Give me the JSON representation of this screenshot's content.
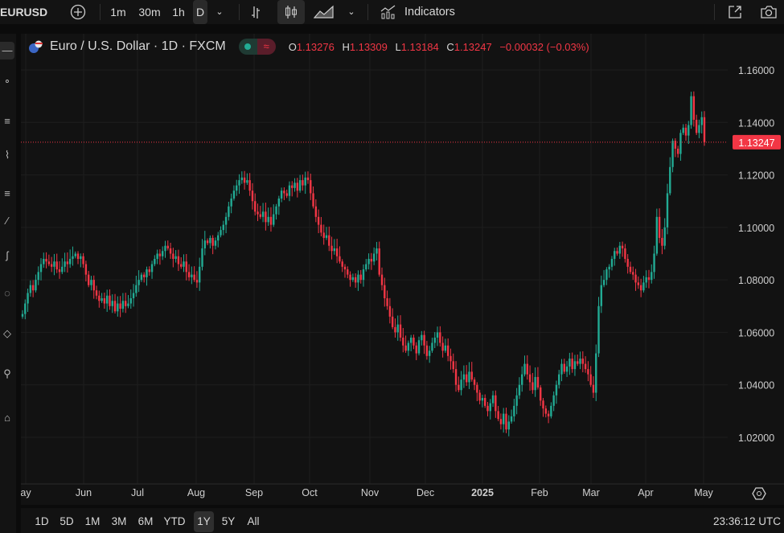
{
  "toolbar": {
    "symbol": "EURUSD",
    "intervals": [
      "1m",
      "30m",
      "1h",
      "D"
    ],
    "selected_interval": "D",
    "indicators_label": "Indicators",
    "icons": [
      "add-symbol-icon",
      "chevron-down-icon",
      "bar-chart-icon",
      "candles-icon",
      "area-chart-icon",
      "chevron-down-icon",
      "indicators-icon",
      "fullscreen-icon",
      "camera-icon"
    ]
  },
  "legend": {
    "title": "Euro / U.S. Dollar · 1D · FXCM",
    "open_label": "O",
    "open": "1.13276",
    "high_label": "H",
    "high": "1.13309",
    "low_label": "L",
    "low": "1.13184",
    "close_label": "C",
    "close": "1.13247",
    "change": "−0.00032 (−0.03%)"
  },
  "time_axis": {
    "labels": [
      "ay",
      "Jun",
      "Jul",
      "Aug",
      "Sep",
      "Oct",
      "Nov",
      "Dec",
      "2025",
      "Feb",
      "Mar",
      "Apr",
      "May"
    ]
  },
  "ranges": {
    "items": [
      "1D",
      "5D",
      "1M",
      "3M",
      "6M",
      "YTD",
      "1Y",
      "5Y",
      "All"
    ],
    "selected": "1Y"
  },
  "clock": "23:36:12 UTC",
  "colors": {
    "up": "#22ab94",
    "down": "#f23645",
    "background": "#121212"
  },
  "chart_data": {
    "type": "candlestick",
    "symbol": "EURUSD",
    "interval": "1D",
    "last_price": "1.13247",
    "ylim": [
      1.01,
      1.17
    ],
    "y_ticks": [
      "1.16000",
      "1.14000",
      "1.12000",
      "1.10000",
      "1.08000",
      "1.06000",
      "1.04000",
      "1.02000"
    ],
    "x_ticks": [
      "May",
      "Jun",
      "Jul",
      "Aug",
      "Sep",
      "Oct",
      "Nov",
      "Dec",
      "2025",
      "Feb",
      "Mar",
      "Apr",
      "May"
    ],
    "first_open": 1.066,
    "closes": [
      1.067,
      1.071,
      1.075,
      1.078,
      1.076,
      1.08,
      1.083,
      1.086,
      1.088,
      1.087,
      1.086,
      1.085,
      1.087,
      1.084,
      1.083,
      1.085,
      1.087,
      1.086,
      1.088,
      1.089,
      1.09,
      1.088,
      1.089,
      1.086,
      1.082,
      1.078,
      1.08,
      1.076,
      1.074,
      1.072,
      1.073,
      1.071,
      1.074,
      1.07,
      1.072,
      1.068,
      1.071,
      1.069,
      1.072,
      1.07,
      1.071,
      1.073,
      1.075,
      1.078,
      1.08,
      1.082,
      1.081,
      1.084,
      1.083,
      1.086,
      1.088,
      1.09,
      1.089,
      1.091,
      1.093,
      1.092,
      1.09,
      1.088,
      1.089,
      1.086,
      1.085,
      1.087,
      1.083,
      1.081,
      1.082,
      1.08,
      1.079,
      1.085,
      1.092,
      1.095,
      1.094,
      1.096,
      1.093,
      1.095,
      1.097,
      1.099,
      1.101,
      1.104,
      1.108,
      1.111,
      1.114,
      1.116,
      1.118,
      1.119,
      1.117,
      1.118,
      1.114,
      1.11,
      1.106,
      1.105,
      1.104,
      1.106,
      1.102,
      1.104,
      1.101,
      1.105,
      1.108,
      1.111,
      1.114,
      1.113,
      1.112,
      1.116,
      1.115,
      1.117,
      1.114,
      1.118,
      1.116,
      1.119,
      1.118,
      1.113,
      1.108,
      1.104,
      1.101,
      1.098,
      1.096,
      1.097,
      1.093,
      1.091,
      1.092,
      1.089,
      1.087,
      1.085,
      1.084,
      1.082,
      1.08,
      1.081,
      1.079,
      1.082,
      1.08,
      1.084,
      1.086,
      1.088,
      1.087,
      1.09,
      1.092,
      1.082,
      1.078,
      1.073,
      1.07,
      1.066,
      1.062,
      1.06,
      1.063,
      1.058,
      1.055,
      1.053,
      1.056,
      1.058,
      1.055,
      1.052,
      1.057,
      1.059,
      1.055,
      1.051,
      1.053,
      1.056,
      1.058,
      1.06,
      1.056,
      1.053,
      1.055,
      1.051,
      1.049,
      1.046,
      1.04,
      1.038,
      1.042,
      1.044,
      1.041,
      1.045,
      1.042,
      1.04,
      1.037,
      1.034,
      1.035,
      1.032,
      1.03,
      1.033,
      1.036,
      1.03,
      1.027,
      1.025,
      1.029,
      1.023,
      1.026,
      1.028,
      1.032,
      1.036,
      1.04,
      1.044,
      1.048,
      1.044,
      1.041,
      1.038,
      1.043,
      1.039,
      1.034,
      1.031,
      1.029,
      1.028,
      1.032,
      1.036,
      1.04,
      1.044,
      1.048,
      1.045,
      1.047,
      1.05,
      1.046,
      1.049,
      1.048,
      1.05,
      1.048,
      1.046,
      1.044,
      1.04,
      1.037,
      1.052,
      1.07,
      1.078,
      1.08,
      1.084,
      1.085,
      1.088,
      1.091,
      1.09,
      1.093,
      1.092,
      1.088,
      1.085,
      1.083,
      1.082,
      1.079,
      1.078,
      1.076,
      1.079,
      1.081,
      1.08,
      1.083,
      1.09,
      1.104,
      1.096,
      1.093,
      1.1,
      1.113,
      1.123,
      1.133,
      1.13,
      1.128,
      1.136,
      1.138,
      1.135,
      1.139,
      1.15,
      1.141,
      1.136,
      1.139,
      1.142,
      1.13247
    ]
  }
}
